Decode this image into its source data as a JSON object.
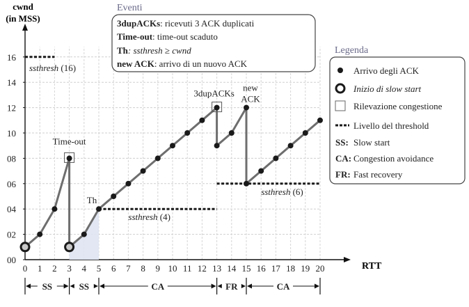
{
  "chart_data": {
    "type": "line",
    "ylabel": [
      "cwnd",
      "(in MSS)"
    ],
    "xlabel": "RTT",
    "ylim": [
      0,
      17
    ],
    "xlim": [
      0,
      20
    ],
    "y_ticks": [
      "00",
      "02",
      "04",
      "06",
      "08",
      "10",
      "12",
      "14",
      "16"
    ],
    "x_ticks": [
      "0",
      "1",
      "2",
      "3",
      "4",
      "5",
      "6",
      "7",
      "8",
      "9",
      "10",
      "11",
      "12",
      "13",
      "14",
      "15",
      "16",
      "17",
      "18",
      "19",
      "20"
    ],
    "series": [
      {
        "points": [
          [
            0,
            1
          ],
          [
            1,
            2
          ],
          [
            2,
            4
          ],
          [
            3,
            8
          ]
        ]
      },
      {
        "points": [
          [
            3,
            1
          ],
          [
            4,
            2
          ],
          [
            5,
            4
          ],
          [
            6,
            5
          ],
          [
            7,
            6
          ],
          [
            8,
            7
          ],
          [
            9,
            8
          ],
          [
            10,
            9
          ],
          [
            11,
            10
          ],
          [
            12,
            11
          ],
          [
            13,
            12
          ]
        ]
      },
      {
        "points": [
          [
            13,
            9
          ],
          [
            14,
            10
          ],
          [
            15,
            12
          ]
        ]
      },
      {
        "points": [
          [
            15,
            6
          ],
          [
            16,
            7
          ],
          [
            17,
            8
          ],
          [
            18,
            9
          ],
          [
            19,
            10
          ],
          [
            20,
            11
          ]
        ]
      }
    ],
    "drops": [
      [
        3,
        8,
        3,
        1
      ],
      [
        13,
        12,
        13,
        9
      ],
      [
        15,
        12,
        15,
        6
      ]
    ],
    "slow_start_points": [
      [
        0,
        1
      ],
      [
        3,
        1
      ]
    ],
    "congestion_boxes": [
      [
        3,
        8
      ],
      [
        13,
        12
      ]
    ],
    "thresholds": [
      {
        "y": 16,
        "x_from": 0,
        "x_to": 2,
        "label": "ssthresh",
        "value": "(16)"
      },
      {
        "y": 4,
        "x_from": 5,
        "x_to": 13,
        "label": "ssthresh",
        "value": "(4)"
      },
      {
        "y": 6,
        "x_from": 13,
        "x_to": 20,
        "label": "ssthresh",
        "value": "(6)"
      }
    ],
    "annotations": [
      "Time-out",
      "Th",
      "3dupACKs",
      "new",
      "ACK"
    ],
    "phases": [
      {
        "label": "SS",
        "from": 0,
        "to": 3
      },
      {
        "label": "SS",
        "from": 3,
        "to": 5
      },
      {
        "label": "CA",
        "from": 5,
        "to": 13
      },
      {
        "label": "FR",
        "from": 13,
        "to": 15
      },
      {
        "label": "CA",
        "from": 15,
        "to": 20
      }
    ]
  },
  "events_box": {
    "title": "Eventi",
    "lines": [
      {
        "term": "3dupACKs",
        "desc": ": ricevuti 3 ACK duplicati"
      },
      {
        "term": "Time-out",
        "desc": ": time-out scaduto"
      },
      {
        "term": "Th",
        "desc": ": ssthresh ≥ cwnd"
      },
      {
        "term": "new ACK",
        "desc": ": arrivo di un nuovo ACK"
      }
    ]
  },
  "legend": {
    "title": "Legenda",
    "items": [
      {
        "symbol": "dot",
        "text": "Arrivo degli ACK"
      },
      {
        "symbol": "ring",
        "text": "Inizio di slow start"
      },
      {
        "symbol": "box",
        "text": "Rilevazione congestione"
      },
      {
        "symbol": "dash",
        "text": "Livello del threshold"
      },
      {
        "symbol": "SS:",
        "text": "Slow start"
      },
      {
        "symbol": "CA:",
        "text": "Congestion avoidance"
      },
      {
        "symbol": "FR:",
        "text": "Fast recovery"
      }
    ]
  },
  "colors": {
    "line": "#6e6e6e",
    "marker": "#1a1a1a",
    "ring_fill": "#c9c9c9",
    "shade": "#dfe4f2",
    "box_border": "#555555"
  }
}
